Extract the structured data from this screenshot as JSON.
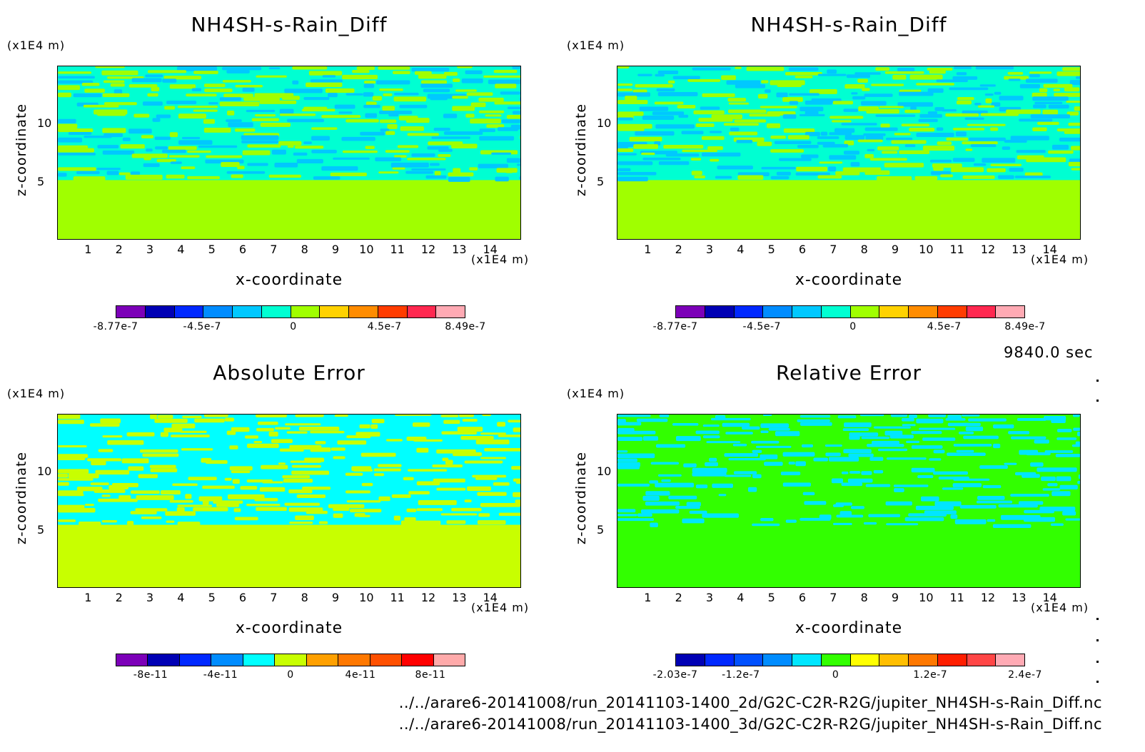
{
  "time_label": "9840.0 sec",
  "files": [
    "../../arare6-20141008/run_20141103-1400_2d/G2C-C2R-R2G/jupiter_NH4SH-s-Rain_Diff.nc",
    "../../arare6-20141008/run_20141103-1400_3d/G2C-C2R-R2G/jupiter_NH4SH-s-Rain_Diff.nc"
  ],
  "chart_data": [
    {
      "type": "heatmap",
      "title": "NH4SH-s-Rain_Diff",
      "xlabel": "x-coordinate",
      "ylabel": "z-coordinate",
      "x_scale_label": "(x1E4 m)",
      "z_scale_label": "(x1E4 m)",
      "xlim": [
        0,
        15
      ],
      "ylim": [
        0,
        15
      ],
      "x_ticks": [
        "1",
        "2",
        "3",
        "4",
        "5",
        "6",
        "7",
        "8",
        "9",
        "10",
        "11",
        "12",
        "13",
        "14"
      ],
      "y_ticks": [
        "5",
        "10"
      ],
      "colorbar": {
        "colors": [
          "#7c00b8",
          "#0000b4",
          "#0028ff",
          "#008cff",
          "#00c8ff",
          "#00ffd2",
          "#a0ff00",
          "#ffd200",
          "#ff8c00",
          "#ff3c00",
          "#ff2850",
          "#ffaab4"
        ],
        "labels": [
          "-8.77e-7",
          "-4.5e-7",
          "0",
          "4.5e-7",
          "8.49e-7"
        ],
        "range": [
          -8.77e-07,
          8.49e-07
        ]
      },
      "field": {
        "lower_color": "#a0ff00",
        "upper_colors": [
          "#00ffd2",
          "#a0ff00",
          "#00c8ff"
        ],
        "interface_z": 5.2
      }
    },
    {
      "type": "heatmap",
      "title": "NH4SH-s-Rain_Diff",
      "xlabel": "x-coordinate",
      "ylabel": "z-coordinate",
      "x_scale_label": "(x1E4 m)",
      "z_scale_label": "(x1E4 m)",
      "xlim": [
        0,
        15
      ],
      "ylim": [
        0,
        15
      ],
      "x_ticks": [
        "1",
        "2",
        "3",
        "4",
        "5",
        "6",
        "7",
        "8",
        "9",
        "10",
        "11",
        "12",
        "13",
        "14"
      ],
      "y_ticks": [
        "5",
        "10"
      ],
      "colorbar": {
        "colors": [
          "#7c00b8",
          "#0000b4",
          "#0028ff",
          "#008cff",
          "#00c8ff",
          "#00ffd2",
          "#a0ff00",
          "#ffd200",
          "#ff8c00",
          "#ff3c00",
          "#ff2850",
          "#ffaab4"
        ],
        "labels": [
          "-8.77e-7",
          "-4.5e-7",
          "0",
          "4.5e-7",
          "8.49e-7"
        ],
        "range": [
          -8.77e-07,
          8.49e-07
        ]
      },
      "field": {
        "lower_color": "#a0ff00",
        "upper_colors": [
          "#00ffd2",
          "#a0ff00",
          "#00c8ff"
        ],
        "interface_z": 5.2
      }
    },
    {
      "type": "heatmap",
      "title": "Absolute Error",
      "xlabel": "x-coordinate",
      "ylabel": "z-coordinate",
      "x_scale_label": "(x1E4 m)",
      "z_scale_label": "(x1E4 m)",
      "xlim": [
        0,
        15
      ],
      "ylim": [
        0,
        15
      ],
      "x_ticks": [
        "1",
        "2",
        "3",
        "4",
        "5",
        "6",
        "7",
        "8",
        "9",
        "10",
        "11",
        "12",
        "13",
        "14"
      ],
      "y_ticks": [
        "5",
        "10"
      ],
      "colorbar": {
        "colors": [
          "#7c00b8",
          "#0000b4",
          "#0028ff",
          "#008cff",
          "#00ffff",
          "#c8ff00",
          "#ffa000",
          "#ff7800",
          "#ff5000",
          "#ff0000",
          "#ffaaaa"
        ],
        "labels": [
          "-8e-11",
          "-4e-11",
          "0",
          "4e-11",
          "8e-11"
        ],
        "range": [
          -1e-10,
          1e-10
        ]
      },
      "field": {
        "lower_color": "#c8ff00",
        "upper_colors": [
          "#00ffff",
          "#c8ff00"
        ],
        "interface_z": 5.5
      }
    },
    {
      "type": "heatmap",
      "title": "Relative Error",
      "xlabel": "x-coordinate",
      "ylabel": "z-coordinate",
      "x_scale_label": "(x1E4 m)",
      "z_scale_label": "(x1E4 m)",
      "xlim": [
        0,
        15
      ],
      "ylim": [
        0,
        15
      ],
      "x_ticks": [
        "1",
        "2",
        "3",
        "4",
        "5",
        "6",
        "7",
        "8",
        "9",
        "10",
        "11",
        "12",
        "13",
        "14"
      ],
      "y_ticks": [
        "5",
        "10"
      ],
      "colorbar": {
        "colors": [
          "#0000b4",
          "#0028ff",
          "#0050ff",
          "#008cff",
          "#00e6ff",
          "#32ff00",
          "#ffff00",
          "#ffbe00",
          "#ff7800",
          "#ff1e00",
          "#ff4646",
          "#ffaab4"
        ],
        "labels": [
          "-2.03e-7",
          "-1.2e-7",
          "0",
          "1.2e-7",
          "2.4e-7"
        ],
        "range": [
          -2.03e-07,
          2.4e-07
        ]
      },
      "field": {
        "lower_color": "#32ff00",
        "upper_colors": [
          "#32ff00",
          "#00e6ff"
        ],
        "interface_z": 5.3
      }
    }
  ]
}
